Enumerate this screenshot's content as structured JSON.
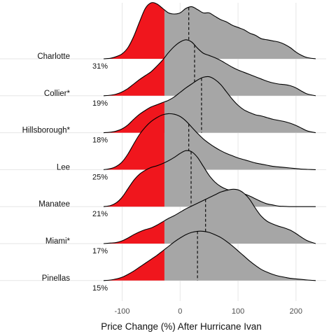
{
  "chart_data": {
    "type": "ridgeline",
    "title": "",
    "xlabel": "Price Change (%) After Hurricane Ivan",
    "ylabel": "",
    "xlim": [
      -132,
      234
    ],
    "xticks": [
      -100,
      0,
      100,
      200
    ],
    "xtick_labels": [
      "-100",
      "0",
      "100",
      "200"
    ],
    "grid": true,
    "legend": "none",
    "colors": {
      "below_threshold": "#f0161d",
      "above_threshold": "#a6a6a6",
      "outline": "#000000",
      "grid": "#e6e6e6"
    },
    "shade_threshold": -27,
    "x_points": [
      -132,
      -120,
      -110,
      -100,
      -90,
      -80,
      -70,
      -60,
      -50,
      -40,
      -30,
      -20,
      -10,
      0,
      10,
      20,
      30,
      40,
      50,
      60,
      70,
      80,
      90,
      100,
      110,
      120,
      130,
      140,
      150,
      160,
      170,
      180,
      190,
      200,
      210,
      220,
      234
    ],
    "series": [
      {
        "name": "Charlotte",
        "pct_label": "31%",
        "median": 15,
        "density": [
          0,
          0.01,
          0.04,
          0.09,
          0.2,
          0.4,
          0.66,
          0.9,
          1.0,
          0.98,
          0.9,
          0.82,
          0.8,
          0.82,
          0.9,
          0.93,
          0.88,
          0.82,
          0.82,
          0.76,
          0.7,
          0.66,
          0.6,
          0.56,
          0.52,
          0.46,
          0.42,
          0.36,
          0.34,
          0.32,
          0.3,
          0.26,
          0.2,
          0.12,
          0.06,
          0.02,
          0
        ]
      },
      {
        "name": "Collier*",
        "pct_label": "19%",
        "median": 25,
        "density": [
          0,
          0.01,
          0.03,
          0.07,
          0.13,
          0.21,
          0.29,
          0.36,
          0.43,
          0.53,
          0.64,
          0.77,
          0.88,
          0.96,
          1.0,
          0.96,
          0.85,
          0.76,
          0.72,
          0.68,
          0.63,
          0.57,
          0.51,
          0.46,
          0.42,
          0.38,
          0.34,
          0.3,
          0.26,
          0.23,
          0.21,
          0.2,
          0.18,
          0.14,
          0.08,
          0.03,
          0
        ]
      },
      {
        "name": "Hillsborough*",
        "pct_label": "18%",
        "median": 37,
        "density": [
          0,
          0.01,
          0.03,
          0.07,
          0.14,
          0.24,
          0.33,
          0.4,
          0.46,
          0.5,
          0.54,
          0.58,
          0.64,
          0.72,
          0.8,
          0.87,
          0.94,
          0.99,
          1.0,
          0.95,
          0.86,
          0.73,
          0.6,
          0.49,
          0.41,
          0.36,
          0.32,
          0.3,
          0.27,
          0.24,
          0.22,
          0.2,
          0.17,
          0.13,
          0.08,
          0.03,
          0
        ]
      },
      {
        "name": "Lee",
        "pct_label": "25%",
        "median": 15,
        "density": [
          0,
          0.02,
          0.06,
          0.14,
          0.28,
          0.46,
          0.63,
          0.76,
          0.86,
          0.93,
          0.98,
          1.0,
          0.99,
          0.95,
          0.87,
          0.76,
          0.65,
          0.55,
          0.47,
          0.4,
          0.34,
          0.29,
          0.25,
          0.21,
          0.18,
          0.15,
          0.12,
          0.1,
          0.08,
          0.06,
          0.05,
          0.04,
          0.03,
          0.02,
          0.01,
          0.005,
          0
        ]
      },
      {
        "name": "Manatee",
        "pct_label": "21%",
        "median": 19,
        "density": [
          0,
          0.02,
          0.07,
          0.17,
          0.32,
          0.47,
          0.58,
          0.65,
          0.7,
          0.73,
          0.77,
          0.82,
          0.88,
          0.95,
          1.0,
          0.98,
          0.88,
          0.72,
          0.56,
          0.44,
          0.36,
          0.31,
          0.28,
          0.26,
          0.23,
          0.19,
          0.14,
          0.09,
          0.05,
          0.03,
          0.01,
          0.005,
          0,
          0,
          0,
          0,
          0
        ]
      },
      {
        "name": "Miami*",
        "pct_label": "17%",
        "median": 44,
        "density": [
          0,
          0.01,
          0.02,
          0.05,
          0.1,
          0.16,
          0.21,
          0.25,
          0.28,
          0.33,
          0.39,
          0.45,
          0.5,
          0.56,
          0.62,
          0.67,
          0.72,
          0.77,
          0.82,
          0.87,
          0.92,
          0.95,
          0.97,
          0.96,
          0.9,
          0.79,
          0.63,
          0.49,
          0.4,
          0.35,
          0.31,
          0.28,
          0.24,
          0.18,
          0.11,
          0.05,
          0
        ]
      },
      {
        "name": "Pinellas",
        "pct_label": "15%",
        "median": 30,
        "density": [
          0,
          0.01,
          0.03,
          0.06,
          0.11,
          0.17,
          0.24,
          0.31,
          0.38,
          0.45,
          0.53,
          0.61,
          0.69,
          0.76,
          0.82,
          0.86,
          0.88,
          0.88,
          0.86,
          0.82,
          0.77,
          0.7,
          0.62,
          0.53,
          0.44,
          0.35,
          0.27,
          0.2,
          0.15,
          0.11,
          0.08,
          0.06,
          0.04,
          0.03,
          0.02,
          0.01,
          0
        ]
      }
    ]
  }
}
